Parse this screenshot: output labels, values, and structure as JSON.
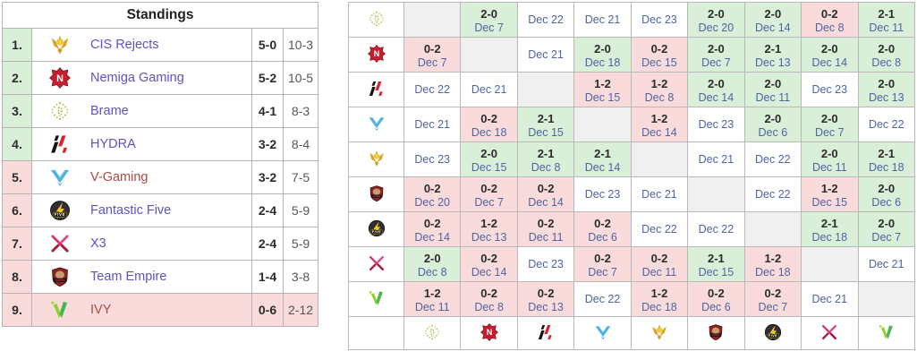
{
  "standings": {
    "title": "Standings",
    "rows": [
      {
        "position": "1.",
        "team": "CIS Rejects",
        "key": "cis",
        "icon": "cis-rejects-logo-icon",
        "series": "5-0",
        "games": "10-3",
        "zone": "advance",
        "link_style": "normal",
        "row_highlight": false
      },
      {
        "position": "2.",
        "team": "Nemiga Gaming",
        "key": "nemiga",
        "icon": "nemiga-logo-icon",
        "series": "5-2",
        "games": "10-5",
        "zone": "advance",
        "link_style": "normal",
        "row_highlight": false
      },
      {
        "position": "3.",
        "team": "Brame",
        "key": "brame",
        "icon": "brame-logo-icon",
        "series": "4-1",
        "games": "8-3",
        "zone": "advance",
        "link_style": "normal",
        "row_highlight": false
      },
      {
        "position": "4.",
        "team": "HYDRA",
        "key": "hydra",
        "icon": "hydra-logo-icon",
        "series": "3-2",
        "games": "8-4",
        "zone": "advance",
        "link_style": "normal",
        "row_highlight": false
      },
      {
        "position": "5.",
        "team": "V-Gaming",
        "key": "vgaming",
        "icon": "v-gaming-logo-icon",
        "series": "3-2",
        "games": "7-5",
        "zone": "relegate",
        "link_style": "red",
        "row_highlight": false
      },
      {
        "position": "6.",
        "team": "Fantastic Five",
        "key": "five",
        "icon": "fantastic-five-logo-icon",
        "series": "2-4",
        "games": "5-9",
        "zone": "relegate",
        "link_style": "normal",
        "row_highlight": false
      },
      {
        "position": "7.",
        "team": "X3",
        "key": "x3",
        "icon": "x3-logo-icon",
        "series": "2-4",
        "games": "5-9",
        "zone": "relegate",
        "link_style": "normal",
        "row_highlight": false
      },
      {
        "position": "8.",
        "team": "Team Empire",
        "key": "empire",
        "icon": "team-empire-logo-icon",
        "series": "1-4",
        "games": "3-8",
        "zone": "relegate",
        "link_style": "normal",
        "row_highlight": false
      },
      {
        "position": "9.",
        "team": "IVY",
        "key": "ivy",
        "icon": "ivy-logo-icon",
        "series": "0-6",
        "games": "2-12",
        "zone": "relegate",
        "link_style": "red",
        "row_highlight": true
      }
    ]
  },
  "crosstable": {
    "team_order": [
      {
        "key": "brame",
        "name": "Brame",
        "icon": "brame-logo-icon"
      },
      {
        "key": "nemiga",
        "name": "Nemiga Gaming",
        "icon": "nemiga-logo-icon"
      },
      {
        "key": "hydra",
        "name": "HYDRA",
        "icon": "hydra-logo-icon"
      },
      {
        "key": "vgaming",
        "name": "V-Gaming",
        "icon": "v-gaming-logo-icon"
      },
      {
        "key": "cis",
        "name": "CIS Rejects",
        "icon": "cis-rejects-logo-icon"
      },
      {
        "key": "empire",
        "name": "Team Empire",
        "icon": "team-empire-logo-icon"
      },
      {
        "key": "five",
        "name": "Fantastic Five",
        "icon": "fantastic-five-logo-icon"
      },
      {
        "key": "x3",
        "name": "X3",
        "icon": "x3-logo-icon"
      },
      {
        "key": "ivy",
        "name": "IVY",
        "icon": "ivy-logo-icon"
      }
    ],
    "rows": [
      {
        "team": "brame",
        "cells": [
          [
            "diag"
          ],
          [
            "win",
            "2-0",
            "Dec 7"
          ],
          [
            "up",
            "Dec 22"
          ],
          [
            "up",
            "Dec 21"
          ],
          [
            "up",
            "Dec 23"
          ],
          [
            "win",
            "2-0",
            "Dec 20"
          ],
          [
            "win",
            "2-0",
            "Dec 14"
          ],
          [
            "loss",
            "0-2",
            "Dec 8"
          ],
          [
            "win",
            "2-1",
            "Dec 11"
          ]
        ]
      },
      {
        "team": "nemiga",
        "cells": [
          [
            "loss",
            "0-2",
            "Dec 7"
          ],
          [
            "diag"
          ],
          [
            "up",
            "Dec 21"
          ],
          [
            "win",
            "2-0",
            "Dec 18"
          ],
          [
            "loss",
            "0-2",
            "Dec 15"
          ],
          [
            "win",
            "2-0",
            "Dec 7"
          ],
          [
            "win",
            "2-1",
            "Dec 13"
          ],
          [
            "win",
            "2-0",
            "Dec 14"
          ],
          [
            "win",
            "2-0",
            "Dec 8"
          ]
        ]
      },
      {
        "team": "hydra",
        "cells": [
          [
            "up",
            "Dec 22"
          ],
          [
            "up",
            "Dec 21"
          ],
          [
            "diag"
          ],
          [
            "loss",
            "1-2",
            "Dec 15"
          ],
          [
            "loss",
            "1-2",
            "Dec 8"
          ],
          [
            "win",
            "2-0",
            "Dec 14"
          ],
          [
            "win",
            "2-0",
            "Dec 11"
          ],
          [
            "up",
            "Dec 23"
          ],
          [
            "win",
            "2-0",
            "Dec 13"
          ]
        ]
      },
      {
        "team": "vgaming",
        "cells": [
          [
            "up",
            "Dec 21"
          ],
          [
            "loss",
            "0-2",
            "Dec 18"
          ],
          [
            "win",
            "2-1",
            "Dec 15"
          ],
          [
            "diag"
          ],
          [
            "loss",
            "1-2",
            "Dec 14"
          ],
          [
            "up",
            "Dec 23"
          ],
          [
            "win",
            "2-0",
            "Dec 6"
          ],
          [
            "win",
            "2-0",
            "Dec 7"
          ],
          [
            "up",
            "Dec 22"
          ]
        ]
      },
      {
        "team": "cis",
        "cells": [
          [
            "up",
            "Dec 23"
          ],
          [
            "win",
            "2-0",
            "Dec 15"
          ],
          [
            "win",
            "2-1",
            "Dec 8"
          ],
          [
            "win",
            "2-1",
            "Dec 14"
          ],
          [
            "diag"
          ],
          [
            "up",
            "Dec 21"
          ],
          [
            "up",
            "Dec 22"
          ],
          [
            "win",
            "2-0",
            "Dec 11"
          ],
          [
            "win",
            "2-1",
            "Dec 18"
          ]
        ]
      },
      {
        "team": "empire",
        "cells": [
          [
            "loss",
            "0-2",
            "Dec 20"
          ],
          [
            "loss",
            "0-2",
            "Dec 7"
          ],
          [
            "loss",
            "0-2",
            "Dec 14"
          ],
          [
            "up",
            "Dec 23"
          ],
          [
            "up",
            "Dec 21"
          ],
          [
            "diag"
          ],
          [
            "up",
            "Dec 22"
          ],
          [
            "loss",
            "1-2",
            "Dec 15"
          ],
          [
            "win",
            "2-0",
            "Dec 6"
          ]
        ]
      },
      {
        "team": "five",
        "cells": [
          [
            "loss",
            "0-2",
            "Dec 14"
          ],
          [
            "loss",
            "1-2",
            "Dec 13"
          ],
          [
            "loss",
            "0-2",
            "Dec 11"
          ],
          [
            "loss",
            "0-2",
            "Dec 6"
          ],
          [
            "up",
            "Dec 22"
          ],
          [
            "up",
            "Dec 22"
          ],
          [
            "diag"
          ],
          [
            "win",
            "2-1",
            "Dec 18"
          ],
          [
            "win",
            "2-0",
            "Dec 7"
          ]
        ]
      },
      {
        "team": "x3",
        "cells": [
          [
            "win",
            "2-0",
            "Dec 8"
          ],
          [
            "loss",
            "0-2",
            "Dec 14"
          ],
          [
            "up",
            "Dec 23"
          ],
          [
            "loss",
            "0-2",
            "Dec 7"
          ],
          [
            "loss",
            "0-2",
            "Dec 11"
          ],
          [
            "win",
            "2-1",
            "Dec 15"
          ],
          [
            "loss",
            "1-2",
            "Dec 18"
          ],
          [
            "diag"
          ],
          [
            "up",
            "Dec 21"
          ]
        ]
      },
      {
        "team": "ivy",
        "cells": [
          [
            "loss",
            "1-2",
            "Dec 11"
          ],
          [
            "loss",
            "0-2",
            "Dec 8"
          ],
          [
            "loss",
            "0-2",
            "Dec 13"
          ],
          [
            "up",
            "Dec 22"
          ],
          [
            "loss",
            "1-2",
            "Dec 18"
          ],
          [
            "loss",
            "0-2",
            "Dec 6"
          ],
          [
            "loss",
            "0-2",
            "Dec 7"
          ],
          [
            "up",
            "Dec 21"
          ],
          [
            "diag"
          ]
        ]
      }
    ]
  },
  "colors": {
    "win_bg": "#d9efd8",
    "loss_bg": "#fadbdb",
    "advance_bg": "#d9efd8",
    "relegate_bg": "#fadbdb",
    "diagonal_bg": "#f0f0f0",
    "grid_border": "#b9b9b9",
    "team_link_purple": "#5e53c0",
    "team_link_red": "#ab4a45",
    "date_link_blue": "#4f63a4"
  }
}
